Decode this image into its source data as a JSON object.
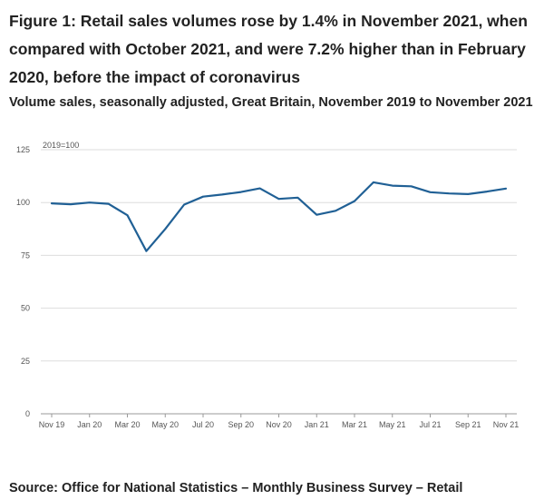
{
  "title": "Figure 1: Retail sales volumes rose by 1.4% in November 2021, when compared with October 2021, and were 7.2% higher than in February 2020, before the impact of coronavirus",
  "subtitle": "Volume sales, seasonally adjusted, Great Britain, November 2019 to November 2021",
  "source": "Source: Office for National Statistics – Monthly Business Survey – Retail",
  "chart_data": {
    "type": "line",
    "unit_label": "2019=100",
    "ylim": [
      0,
      125
    ],
    "yticks": [
      0,
      25,
      50,
      75,
      100,
      125
    ],
    "grid": true,
    "x_tick_labels": [
      "Nov 19",
      "Jan 20",
      "Mar 20",
      "May 20",
      "Jul 20",
      "Sep 20",
      "Nov 20",
      "Jan 21",
      "Mar 21",
      "May 21",
      "Jul 21",
      "Sep 21",
      "Nov 21"
    ],
    "series": [
      {
        "name": "Volume sales",
        "color": "#206095",
        "x": [
          "Nov 19",
          "Dec 19",
          "Jan 20",
          "Feb 20",
          "Mar 20",
          "Apr 20",
          "May 20",
          "Jun 20",
          "Jul 20",
          "Aug 20",
          "Sep 20",
          "Oct 20",
          "Nov 20",
          "Dec 20",
          "Jan 21",
          "Feb 21",
          "Mar 21",
          "Apr 21",
          "May 21",
          "Jun 21",
          "Jul 21",
          "Aug 21",
          "Sep 21",
          "Oct 21",
          "Nov 21"
        ],
        "values": [
          99.6,
          99.2,
          100.0,
          99.4,
          94.0,
          77.0,
          87.5,
          99.0,
          102.8,
          103.8,
          105.0,
          106.7,
          101.7,
          102.3,
          94.2,
          96.1,
          100.7,
          109.6,
          108.0,
          107.7,
          104.9,
          104.3,
          104.0,
          105.2,
          106.6
        ]
      }
    ]
  }
}
